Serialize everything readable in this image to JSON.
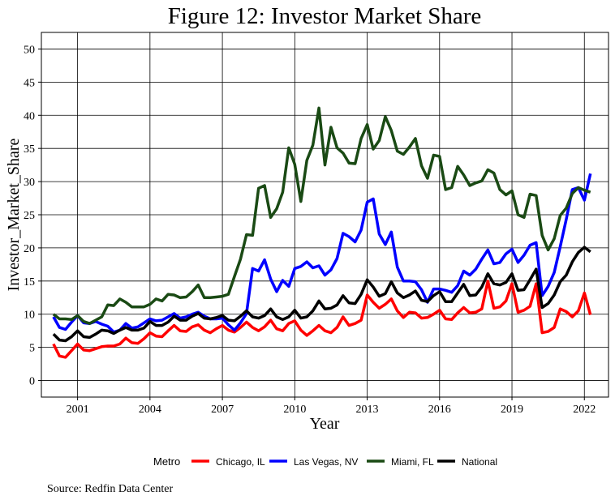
{
  "chart_data": {
    "type": "line",
    "title": "Figure 12: Investor Market Share",
    "xlabel": "Year",
    "ylabel": "Investor_Market_Share",
    "caption": "Source: Redfin Data Center",
    "legend_title": "Metro",
    "legend_position": "bottom",
    "grid": true,
    "xlim": [
      1999.5,
      2023.0
    ],
    "ylim": [
      -2.5,
      52.5
    ],
    "x_ticks": [
      2001,
      2004,
      2007,
      2010,
      2013,
      2016,
      2019,
      2022
    ],
    "y_ticks": [
      0,
      5,
      10,
      15,
      20,
      25,
      30,
      35,
      40,
      45,
      50
    ],
    "x": [
      2000.0,
      2000.25,
      2000.5,
      2000.75,
      2001.0,
      2001.25,
      2001.5,
      2001.75,
      2002.0,
      2002.25,
      2002.5,
      2002.75,
      2003.0,
      2003.25,
      2003.5,
      2003.75,
      2004.0,
      2004.25,
      2004.5,
      2004.75,
      2005.0,
      2005.25,
      2005.5,
      2005.75,
      2006.0,
      2006.25,
      2006.5,
      2006.75,
      2007.0,
      2007.25,
      2007.5,
      2007.75,
      2008.0,
      2008.25,
      2008.5,
      2008.75,
      2009.0,
      2009.25,
      2009.5,
      2009.75,
      2010.0,
      2010.25,
      2010.5,
      2010.75,
      2011.0,
      2011.25,
      2011.5,
      2011.75,
      2012.0,
      2012.25,
      2012.5,
      2012.75,
      2013.0,
      2013.25,
      2013.5,
      2013.75,
      2014.0,
      2014.25,
      2014.5,
      2014.75,
      2015.0,
      2015.25,
      2015.5,
      2015.75,
      2016.0,
      2016.25,
      2016.5,
      2016.75,
      2017.0,
      2017.25,
      2017.5,
      2017.75,
      2018.0,
      2018.25,
      2018.5,
      2018.75,
      2019.0,
      2019.25,
      2019.5,
      2019.75,
      2020.0,
      2020.25,
      2020.5,
      2020.75,
      2021.0,
      2021.25,
      2021.5,
      2021.75,
      2022.0,
      2022.25
    ],
    "series": [
      {
        "name": "Chicago, IL",
        "color": "#ff0000",
        "values": [
          5.5,
          3.7,
          3.5,
          4.5,
          5.5,
          4.6,
          4.5,
          4.8,
          5.1,
          5.2,
          5.2,
          5.5,
          6.4,
          5.7,
          5.6,
          6.3,
          7.2,
          6.7,
          6.6,
          7.5,
          8.3,
          7.5,
          7.4,
          8.1,
          8.4,
          7.6,
          7.2,
          7.8,
          8.3,
          7.6,
          7.3,
          8.0,
          8.8,
          8.0,
          7.5,
          8.1,
          9.1,
          7.8,
          7.5,
          8.6,
          9.0,
          7.6,
          6.8,
          7.5,
          8.3,
          7.5,
          7.2,
          8.0,
          9.6,
          8.3,
          8.6,
          9.1,
          12.9,
          11.8,
          10.9,
          11.5,
          12.3,
          10.5,
          9.5,
          10.3,
          10.2,
          9.4,
          9.5,
          10.0,
          10.6,
          9.3,
          9.2,
          10.2,
          11.0,
          10.2,
          10.3,
          10.8,
          15.0,
          10.9,
          11.1,
          12.0,
          14.6,
          10.3,
          10.6,
          11.2,
          14.6,
          7.2,
          7.4,
          8.0,
          10.8,
          10.4,
          9.6,
          10.5,
          13.2,
          9.9
        ]
      },
      {
        "name": "Las Vegas, NV",
        "color": "#0000ff",
        "values": [
          9.6,
          8.0,
          7.7,
          8.8,
          9.8,
          8.7,
          8.6,
          8.9,
          8.5,
          8.2,
          7.3,
          7.6,
          8.6,
          7.9,
          8.1,
          8.7,
          9.3,
          9.0,
          9.1,
          9.6,
          10.1,
          9.4,
          9.6,
          10.0,
          10.3,
          9.7,
          9.3,
          9.3,
          9.4,
          8.4,
          7.6,
          8.7,
          10.1,
          16.9,
          16.5,
          18.2,
          15.3,
          13.4,
          15.1,
          14.2,
          16.9,
          17.2,
          17.9,
          17.0,
          17.3,
          15.9,
          16.7,
          18.4,
          22.2,
          21.7,
          20.9,
          22.7,
          26.9,
          27.4,
          22.1,
          20.5,
          22.4,
          17.1,
          15.0,
          15.0,
          14.9,
          13.7,
          11.8,
          13.8,
          13.8,
          13.6,
          13.3,
          14.3,
          16.5,
          15.9,
          16.8,
          18.3,
          19.7,
          17.6,
          17.8,
          19.1,
          19.8,
          17.8,
          18.9,
          20.4,
          20.8,
          12.8,
          14.2,
          16.3,
          20.2,
          24.3,
          28.8,
          29.1,
          27.2,
          31.2
        ]
      },
      {
        "name": "Miami, FL",
        "color": "#1a4a14",
        "values": [
          10.0,
          9.3,
          9.3,
          9.2,
          9.8,
          8.9,
          8.6,
          9.1,
          9.6,
          11.4,
          11.3,
          12.3,
          11.8,
          11.1,
          11.1,
          11.1,
          11.5,
          12.3,
          12.0,
          13.0,
          12.9,
          12.5,
          12.6,
          13.4,
          14.4,
          12.5,
          12.5,
          12.6,
          12.7,
          13.0,
          15.7,
          18.3,
          22.0,
          21.9,
          29.0,
          29.4,
          24.6,
          25.9,
          28.4,
          35.1,
          32.6,
          27.0,
          33.2,
          35.5,
          41.1,
          32.5,
          38.2,
          35.1,
          34.3,
          32.8,
          32.7,
          36.5,
          38.6,
          34.9,
          36.2,
          39.8,
          37.7,
          34.6,
          34.1,
          35.2,
          36.5,
          32.4,
          30.5,
          34.0,
          33.8,
          28.8,
          29.1,
          32.3,
          31.0,
          29.4,
          29.8,
          30.1,
          31.8,
          31.3,
          28.8,
          28.0,
          28.6,
          25.0,
          24.6,
          28.1,
          27.9,
          21.9,
          19.7,
          21.4,
          24.9,
          26.0,
          28.2,
          29.1,
          28.7,
          28.4
        ]
      },
      {
        "name": "National",
        "color": "#000000",
        "values": [
          7.0,
          6.1,
          6.0,
          6.6,
          7.5,
          6.6,
          6.5,
          7.0,
          7.6,
          7.5,
          7.1,
          7.6,
          8.0,
          7.6,
          7.6,
          7.9,
          8.9,
          8.3,
          8.3,
          8.8,
          9.7,
          9.1,
          9.1,
          9.7,
          10.1,
          9.4,
          9.3,
          9.5,
          9.8,
          9.1,
          9.0,
          9.7,
          10.5,
          9.6,
          9.4,
          9.8,
          10.8,
          9.6,
          9.2,
          9.6,
          10.6,
          9.4,
          9.6,
          10.5,
          12.0,
          10.8,
          10.9,
          11.4,
          12.8,
          11.7,
          11.6,
          13.0,
          15.2,
          14.1,
          12.7,
          13.1,
          14.9,
          13.2,
          12.5,
          12.9,
          13.5,
          12.1,
          11.9,
          12.8,
          13.4,
          11.9,
          11.9,
          13.2,
          14.5,
          12.8,
          12.9,
          14.1,
          16.1,
          14.6,
          14.4,
          14.8,
          16.1,
          13.6,
          13.7,
          15.2,
          16.8,
          11.0,
          11.6,
          12.9,
          14.9,
          15.9,
          17.9,
          19.3,
          20.1,
          19.4
        ]
      }
    ]
  }
}
